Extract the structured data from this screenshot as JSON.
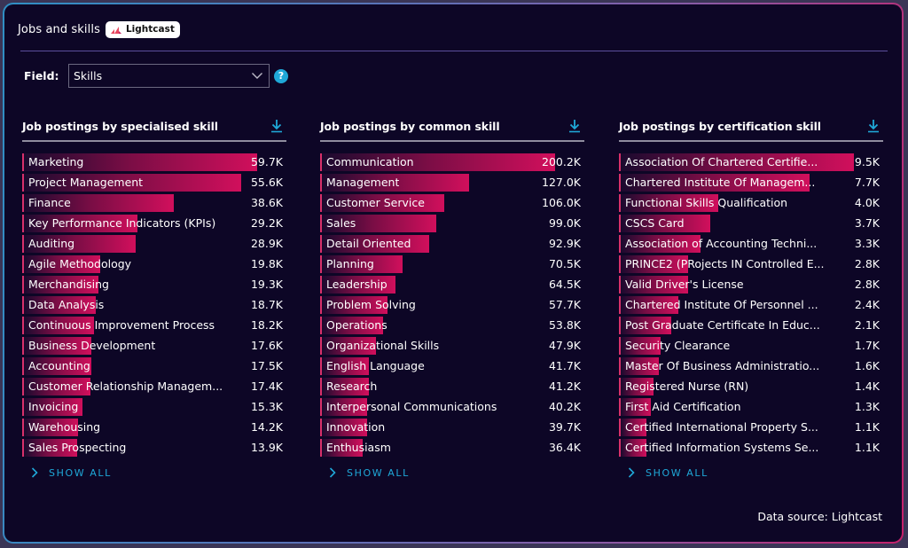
{
  "header": {
    "title": "Jobs and skills",
    "logo_text": "Lightcast"
  },
  "field": {
    "label": "Field:",
    "value": "Skills",
    "help_icon": "?"
  },
  "colors": {
    "background": "#0d0626",
    "bar_end": "#d10f5c",
    "accent": "#1fa8d8"
  },
  "columns": [
    {
      "title": "Job postings by specialised skill",
      "show_all": "SHOW ALL"
    },
    {
      "title": "Job postings by common skill",
      "show_all": "SHOW ALL"
    },
    {
      "title": "Job postings by certification skill",
      "show_all": "SHOW ALL"
    }
  ],
  "footer": {
    "source": "Data source: Lightcast"
  },
  "chart_data": [
    {
      "type": "bar",
      "orientation": "horizontal",
      "title": "Job postings by specialised skill",
      "unit": "K",
      "categories": [
        "Marketing",
        "Project Management",
        "Finance",
        "Key Performance Indicators (KPIs)",
        "Auditing",
        "Agile Methodology",
        "Merchandising",
        "Data Analysis",
        "Continuous Improvement Process",
        "Business Development",
        "Accounting",
        "Customer Relationship Managem...",
        "Invoicing",
        "Warehousing",
        "Sales Prospecting"
      ],
      "values": [
        59.7,
        55.6,
        38.6,
        29.2,
        28.9,
        19.8,
        19.3,
        18.7,
        18.2,
        17.6,
        17.5,
        17.4,
        15.3,
        14.2,
        13.9
      ],
      "labels": [
        "59.7K",
        "55.6K",
        "38.6K",
        "29.2K",
        "28.9K",
        "19.8K",
        "19.3K",
        "18.7K",
        "18.2K",
        "17.6K",
        "17.5K",
        "17.4K",
        "15.3K",
        "14.2K",
        "13.9K"
      ]
    },
    {
      "type": "bar",
      "orientation": "horizontal",
      "title": "Job postings by common skill",
      "unit": "K",
      "categories": [
        "Communication",
        "Management",
        "Customer Service",
        "Sales",
        "Detail Oriented",
        "Planning",
        "Leadership",
        "Problem Solving",
        "Operations",
        "Organizational Skills",
        "English Language",
        "Research",
        "Interpersonal Communications",
        "Innovation",
        "Enthusiasm"
      ],
      "values": [
        200.2,
        127.0,
        106.0,
        99.0,
        92.9,
        70.5,
        64.5,
        57.7,
        53.8,
        47.9,
        41.7,
        41.2,
        40.2,
        39.7,
        36.4
      ],
      "labels": [
        "200.2K",
        "127.0K",
        "106.0K",
        "99.0K",
        "92.9K",
        "70.5K",
        "64.5K",
        "57.7K",
        "53.8K",
        "47.9K",
        "41.7K",
        "41.2K",
        "40.2K",
        "39.7K",
        "36.4K"
      ]
    },
    {
      "type": "bar",
      "orientation": "horizontal",
      "title": "Job postings by certification skill",
      "unit": "K",
      "categories": [
        "Association Of Chartered Certifie...",
        "Chartered Institute Of Managem...",
        "Functional Skills Qualification",
        "CSCS Card",
        "Association of Accounting Techni...",
        "PRINCE2 (PRojects IN Controlled E...",
        "Valid Driver's License",
        "Chartered Institute Of Personnel ...",
        "Post Graduate Certificate In Educ...",
        "Security Clearance",
        "Master Of Business Administratio...",
        "Registered Nurse (RN)",
        "First Aid Certification",
        "Certified International Property S...",
        "Certified Information Systems Se..."
      ],
      "values": [
        9.5,
        7.7,
        4.0,
        3.7,
        3.3,
        2.8,
        2.8,
        2.4,
        2.1,
        1.7,
        1.6,
        1.4,
        1.3,
        1.1,
        1.1
      ],
      "labels": [
        "9.5K",
        "7.7K",
        "4.0K",
        "3.7K",
        "3.3K",
        "2.8K",
        "2.8K",
        "2.4K",
        "2.1K",
        "1.7K",
        "1.6K",
        "1.4K",
        "1.3K",
        "1.1K",
        "1.1K"
      ]
    }
  ]
}
